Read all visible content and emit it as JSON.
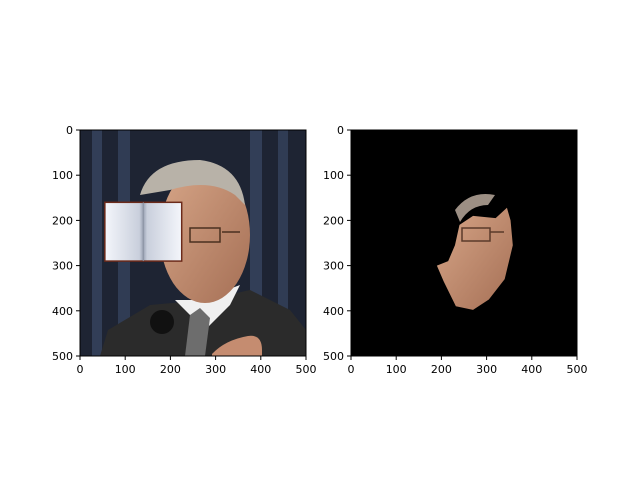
{
  "chart_data": [
    {
      "type": "image",
      "panel": "left",
      "content": "photo-with-book-overlay",
      "xlim": [
        0,
        500
      ],
      "ylim": [
        500,
        0
      ],
      "x_ticks": [
        0,
        100,
        200,
        300,
        400,
        500
      ],
      "y_ticks": [
        0,
        100,
        200,
        300,
        400,
        500
      ],
      "x_tick_labels": [
        "0",
        "100",
        "200",
        "300",
        "400",
        "500"
      ],
      "y_tick_labels": [
        "0",
        "100",
        "200",
        "300",
        "400",
        "500"
      ],
      "overlay": {
        "x": [
          55,
          225
        ],
        "y": [
          160,
          290
        ]
      },
      "colors": {
        "background": "#1e2433",
        "curtain_stripe": "#3b4a66",
        "skin": "#c79478",
        "suit": "#2b2b2b",
        "hair": "#b8b2a8"
      }
    },
    {
      "type": "image",
      "panel": "right",
      "content": "segmented-face-mask",
      "xlim": [
        0,
        500
      ],
      "ylim": [
        500,
        0
      ],
      "x_ticks": [
        0,
        100,
        200,
        300,
        400,
        500
      ],
      "y_ticks": [
        0,
        100,
        200,
        300,
        400,
        500
      ],
      "x_tick_labels": [
        "0",
        "100",
        "200",
        "300",
        "400",
        "500"
      ],
      "y_tick_labels": [
        "0",
        "100",
        "200",
        "300",
        "400",
        "500"
      ],
      "mask_outline": [
        [
          320,
          195
        ],
        [
          345,
          172
        ],
        [
          353,
          200
        ],
        [
          358,
          255
        ],
        [
          340,
          330
        ],
        [
          305,
          375
        ],
        [
          270,
          398
        ],
        [
          232,
          390
        ],
        [
          205,
          335
        ],
        [
          190,
          300
        ],
        [
          215,
          290
        ],
        [
          230,
          255
        ],
        [
          240,
          210
        ],
        [
          270,
          190
        ]
      ],
      "colors": {
        "background": "#000000",
        "skin": "#b98566",
        "glasses": "#5a3a2a"
      }
    }
  ]
}
